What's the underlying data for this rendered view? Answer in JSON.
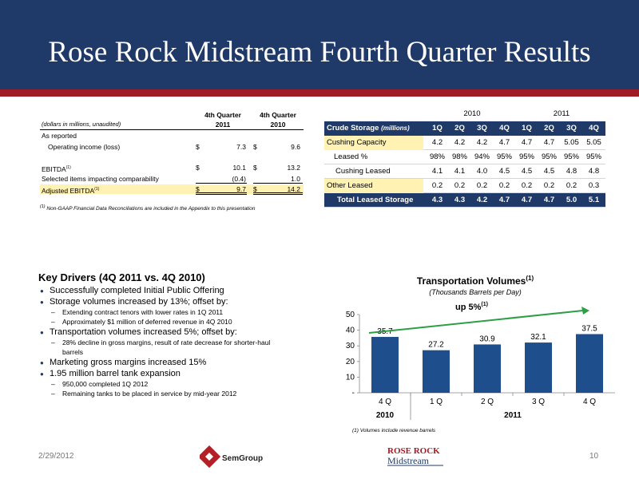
{
  "slide": {
    "title": "Rose Rock Midstream Fourth Quarter Results",
    "date": "2/29/2012",
    "page": "10"
  },
  "financials": {
    "col1_head": "4th Quarter",
    "col1_year": "2011",
    "col2_head": "4th Quarter",
    "col2_year": "2010",
    "units": "(dollars in millions, unaudited)",
    "rows": [
      {
        "label": "As reported",
        "d1": "",
        "v1": "",
        "d2": "",
        "v2": ""
      },
      {
        "label": "Operating income (loss)",
        "d1": "$",
        "v1": "7.3",
        "d2": "$",
        "v2": "9.6"
      },
      {
        "label": "",
        "d1": "",
        "v1": "",
        "d2": "",
        "v2": ""
      },
      {
        "label": "EBITDA",
        "sup": "(1)",
        "d1": "$",
        "v1": "10.1",
        "d2": "$",
        "v2": "13.2"
      },
      {
        "label": "Selected items impacting comparability",
        "d1": "",
        "v1": "(0.4)",
        "d2": "",
        "v2": "1.0"
      },
      {
        "label": "Adjusted EBITDA",
        "sup": "(1)",
        "d1": "$",
        "v1": "9.7",
        "d2": "$",
        "v2": "14.2"
      }
    ],
    "footnote_sup": "(1)",
    "footnote": "Non-GAAP Financial Data Reconciliations are included in the Appendix to this presentation"
  },
  "storage": {
    "year1": "2010",
    "year2": "2011",
    "header_label": "Crude Storage",
    "header_units": "(millions)",
    "quarters": [
      "1Q",
      "2Q",
      "3Q",
      "4Q",
      "1Q",
      "2Q",
      "3Q",
      "4Q"
    ],
    "rows": [
      {
        "label": "Cushing Capacity",
        "values": [
          "4.2",
          "4.2",
          "4.2",
          "4.7",
          "4.7",
          "4.7",
          "5.05",
          "5.05"
        ]
      },
      {
        "label": "Leased %",
        "values": [
          "98%",
          "98%",
          "94%",
          "95%",
          "95%",
          "95%",
          "95%",
          "95%"
        ]
      },
      {
        "label": "Cushing Leased",
        "values": [
          "4.1",
          "4.1",
          "4.0",
          "4.5",
          "4.5",
          "4.5",
          "4.8",
          "4.8"
        ]
      },
      {
        "label": "Other Leased",
        "values": [
          "0.2",
          "0.2",
          "0.2",
          "0.2",
          "0.2",
          "0.2",
          "0.2",
          "0.3"
        ]
      },
      {
        "label": "Total Leased Storage",
        "values": [
          "4.3",
          "4.3",
          "4.2",
          "4.7",
          "4.7",
          "4.7",
          "5.0",
          "5.1"
        ]
      }
    ],
    "colors": {
      "header": "#1f3a68",
      "highlight": "#fff2b3"
    }
  },
  "key_drivers": {
    "title": "Key Drivers (4Q 2011 vs. 4Q 2010)",
    "items": [
      {
        "text": "Successfully completed Initial Public Offering",
        "subs": []
      },
      {
        "text": "Storage volumes increased by 13%; offset by:",
        "subs": [
          "Extending contract tenors with lower rates in 1Q 2011",
          "Approximately $1 million of deferred revenue in 4Q 2010"
        ]
      },
      {
        "text": "Transportation volumes increased 5%; offset by:",
        "subs": [
          "28% decline in gross margins, result of rate decrease for shorter-haul barrels"
        ]
      },
      {
        "text": "Marketing gross margins increased 15%",
        "subs": []
      },
      {
        "text": "1.95 million barrel tank expansion",
        "subs": [
          "950,000 completed 1Q 2012",
          "Remaining tanks to be placed in service by mid-year 2012"
        ]
      }
    ]
  },
  "chart_data": {
    "type": "bar",
    "title": "Transportation Volumes",
    "title_sup": "(1)",
    "subtitle": "(Thousands Barrels per Day)",
    "categories": [
      "4 Q",
      "1 Q",
      "2 Q",
      "3 Q",
      "4 Q"
    ],
    "groups": [
      {
        "label": "2010",
        "from": 0,
        "to": 0
      },
      {
        "label": "2011",
        "from": 1,
        "to": 4
      }
    ],
    "values": [
      35.7,
      27.2,
      30.9,
      32.1,
      37.5
    ],
    "data_labels": [
      "35.7",
      "27.2",
      "30.9",
      "32.1",
      "37.5"
    ],
    "ylim": [
      0,
      50
    ],
    "yticks": [
      "-",
      "10",
      "20",
      "30",
      "40",
      "50"
    ],
    "annotation": "up 5%",
    "annotation_sup": "(1)",
    "bar_color": "#1f4e8c",
    "arrow_color": "#2e9e44",
    "footnote": "(1) Volumes include revenue barrels"
  },
  "logos": {
    "semgroup": "SemGroup",
    "roserock_1": "ROSE ROCK",
    "roserock_2": "Midstream"
  }
}
